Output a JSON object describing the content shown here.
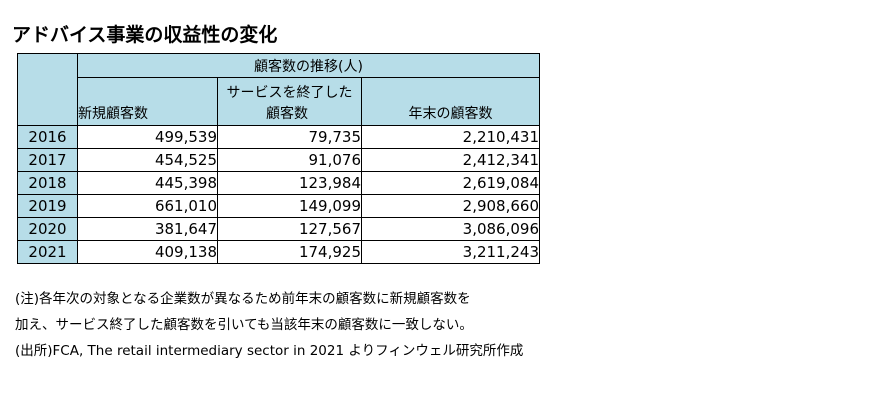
{
  "title": "アドバイス事業の収益性の変化",
  "table": {
    "group_header": "顧客数の推移(人)",
    "columns": [
      "新規顧客数",
      "サービスを終了した顧客数",
      "年末の顧客数"
    ],
    "column_lines": [
      [
        "新規顧客数"
      ],
      [
        "サービスを終了した",
        "顧客数"
      ],
      [
        "年末の顧客数"
      ]
    ],
    "rows": [
      {
        "year": "2016",
        "new": "499,539",
        "ended": "79,735",
        "year_end": "2,210,431"
      },
      {
        "year": "2017",
        "new": "454,525",
        "ended": "91,076",
        "year_end": "2,412,341"
      },
      {
        "year": "2018",
        "new": "445,398",
        "ended": "123,984",
        "year_end": "2,619,084"
      },
      {
        "year": "2019",
        "new": "661,010",
        "ended": "149,099",
        "year_end": "2,908,660"
      },
      {
        "year": "2020",
        "new": "381,647",
        "ended": "127,567",
        "year_end": "3,086,096"
      },
      {
        "year": "2021",
        "new": "409,138",
        "ended": "174,925",
        "year_end": "3,211,243"
      }
    ]
  },
  "notes": [
    "(注)各年次の対象となる企業数が異なるため前年末の顧客数に新規顧客数を",
    "加え、サービス終了した顧客数を引いても当該年末の顧客数に一致しない。",
    "(出所)FCA, The retail intermediary sector in 2021 よりフィンウェル研究所作成"
  ]
}
